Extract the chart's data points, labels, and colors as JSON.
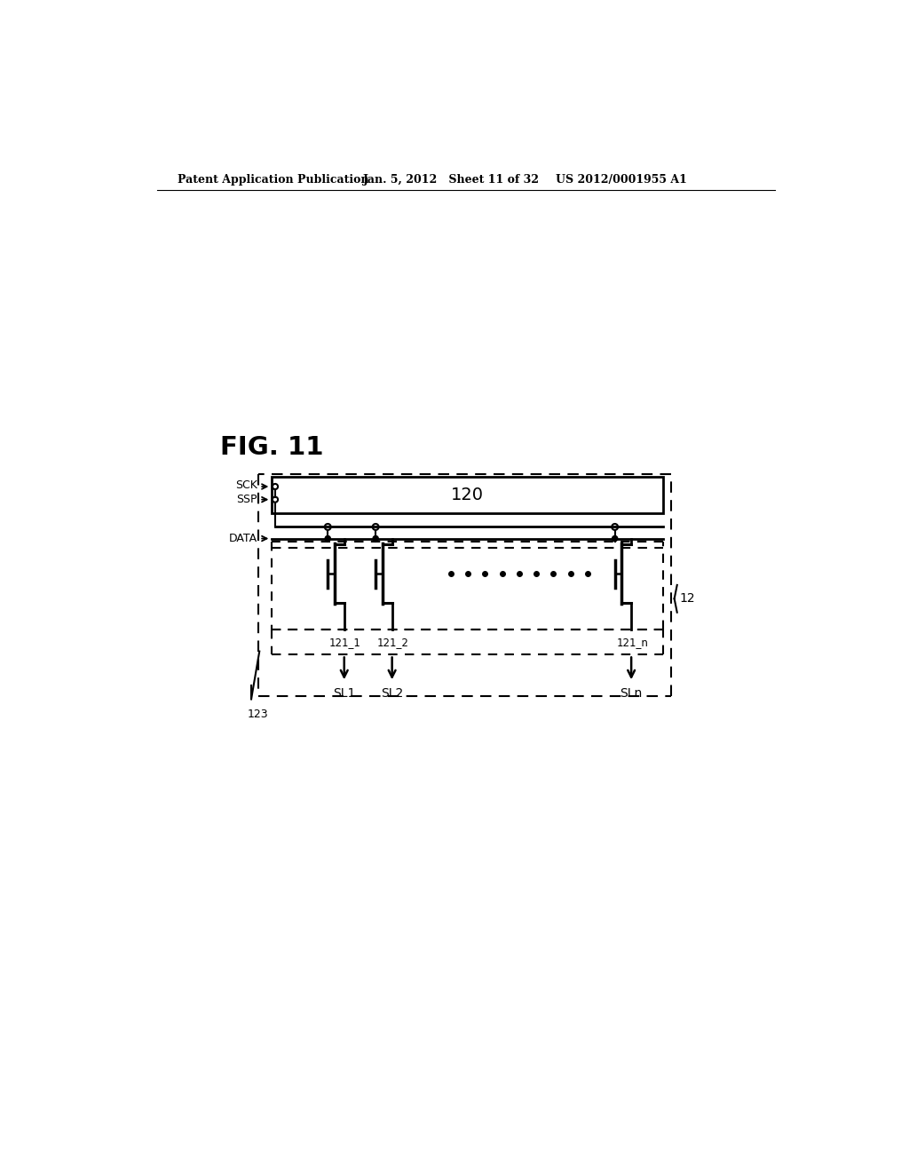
{
  "background": "#ffffff",
  "lc": "#000000",
  "header_left": "Patent Application Publication",
  "header_center": "Jan. 5, 2012   Sheet 11 of 32",
  "header_right": "US 2012/0001955 A1",
  "fig_label": "FIG. 11",
  "label_120": "120",
  "label_12": "12",
  "label_123": "123",
  "label_sck": "SCK",
  "label_ssp": "SSP",
  "label_data": "DATA",
  "labels_sl": [
    "SL1",
    "SL2",
    "SLn"
  ],
  "labels_121": [
    "121_1",
    "121_2",
    "121_n"
  ],
  "dots_ellipsis_x": [
    490,
    515,
    540,
    565,
    590,
    615,
    640,
    665,
    690
  ],
  "tr_centers": [
    310,
    380,
    730
  ]
}
